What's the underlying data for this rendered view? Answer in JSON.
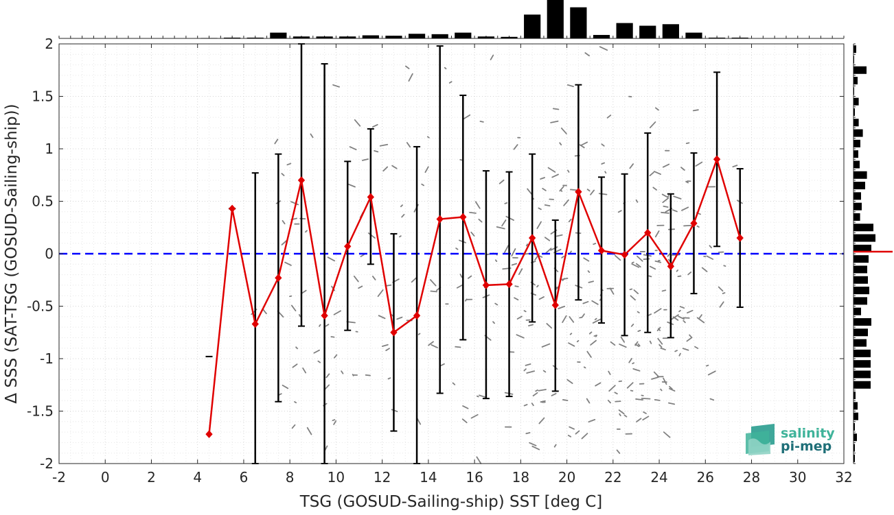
{
  "chart_data": {
    "type": "line",
    "xlabel": "TSG (GOSUD-Sailing-ship) SST [deg C]",
    "ylabel": "Δ SSS (SAT-TSG (GOSUD-Sailing-ship))",
    "xlim": [
      -2,
      32
    ],
    "ylim": [
      -2,
      2
    ],
    "xticks": [
      "-2",
      "0",
      "2",
      "4",
      "6",
      "8",
      "10",
      "12",
      "14",
      "16",
      "18",
      "20",
      "22",
      "24",
      "26",
      "28",
      "30",
      "32"
    ],
    "yticks": [
      "-2",
      "-1.5",
      "-1",
      "-0.5",
      "0",
      "0.5",
      "1",
      "1.5",
      "2"
    ],
    "grid": true,
    "reference_line": {
      "y": 0,
      "color": "#0000ff",
      "style": "dashed"
    },
    "series": [
      {
        "color": "#e00000",
        "x": [
          4.5,
          5.5,
          6.5,
          7.5,
          8.5,
          9.5,
          10.5,
          11.5,
          12.5,
          13.5,
          14.5,
          15.5,
          16.5,
          17.5,
          18.5,
          19.5,
          20.5,
          21.5,
          22.5,
          23.5,
          24.5,
          25.5,
          26.5,
          27.5
        ],
        "y": [
          -1.72,
          0.43,
          -0.67,
          -0.23,
          0.7,
          -0.59,
          0.07,
          0.54,
          -0.75,
          -0.59,
          0.33,
          0.35,
          -0.3,
          -0.29,
          0.15,
          -0.49,
          0.59,
          0.03,
          -0.01,
          0.2,
          -0.12,
          0.29,
          0.9,
          0.15
        ],
        "err_low": [
          -0.98,
          0.43,
          -2.0,
          -1.41,
          -0.69,
          -2.0,
          -0.73,
          -0.1,
          -1.69,
          -2.0,
          -1.33,
          -0.82,
          -1.38,
          -1.36,
          -0.65,
          -1.31,
          -0.44,
          -0.66,
          -0.78,
          -0.75,
          -0.8,
          -0.38,
          0.07,
          -0.51
        ],
        "err_high": [
          -0.98,
          0.43,
          0.77,
          0.95,
          2.0,
          1.81,
          0.88,
          1.19,
          0.19,
          1.02,
          1.98,
          1.51,
          0.79,
          0.78,
          0.95,
          0.32,
          1.61,
          0.73,
          0.76,
          1.15,
          0.57,
          0.96,
          1.73,
          0.81
        ]
      }
    ],
    "top_histogram": {
      "bin_centers": [
        -1.5,
        -0.5,
        0.5,
        1.5,
        2.5,
        3.5,
        4.5,
        5.5,
        6.5,
        7.5,
        8.5,
        9.5,
        10.5,
        11.5,
        12.5,
        13.5,
        14.5,
        15.5,
        16.5,
        17.5,
        18.5,
        19.5,
        20.5,
        21.5,
        22.5,
        23.5,
        24.5,
        25.5,
        26.5,
        27.5,
        28.5,
        29.5,
        30.5,
        31.5
      ],
      "relative_counts": [
        0,
        0,
        0,
        0,
        0,
        0,
        0.01,
        0.02,
        0.02,
        0.15,
        0.05,
        0.05,
        0.05,
        0.08,
        0.07,
        0.12,
        0.11,
        0.15,
        0.05,
        0.04,
        0.62,
        1.0,
        0.81,
        0.09,
        0.4,
        0.33,
        0.37,
        0.15,
        0.02,
        0.02,
        0,
        0,
        0,
        0
      ]
    },
    "right_histogram": {
      "bin_centers": [
        1.95,
        1.85,
        1.75,
        1.65,
        1.55,
        1.45,
        1.35,
        1.25,
        1.15,
        1.05,
        0.95,
        0.85,
        0.75,
        0.65,
        0.55,
        0.45,
        0.35,
        0.25,
        0.15,
        0.05,
        -0.05,
        -0.15,
        -0.25,
        -0.35,
        -0.45,
        -0.55,
        -0.65,
        -0.75,
        -0.85,
        -0.95,
        -1.05,
        -1.15,
        -1.25,
        -1.35,
        -1.45,
        -1.55,
        -1.65,
        -1.75,
        -1.85,
        -1.95
      ],
      "relative_counts": [
        0.2,
        0.05,
        0.95,
        0.3,
        0.05,
        0.38,
        0.1,
        0.38,
        0.68,
        0.5,
        0.35,
        0.45,
        0.98,
        0.85,
        0.55,
        0.6,
        0.48,
        1.45,
        1.6,
        1.3,
        1.1,
        1.0,
        1.05,
        1.15,
        1.0,
        0.55,
        1.3,
        1.05,
        0.95,
        1.25,
        1.25,
        1.25,
        1.25,
        0.15,
        0.3,
        0.35,
        0.1,
        0.25,
        0.1,
        0.1
      ],
      "mean_marker_y": 0.02,
      "mean_marker_color": "#e00000"
    }
  },
  "logo": {
    "line1": "salinity",
    "line2": "pi-mep",
    "color1": "#3fb39a",
    "color2": "#1f6f78"
  }
}
